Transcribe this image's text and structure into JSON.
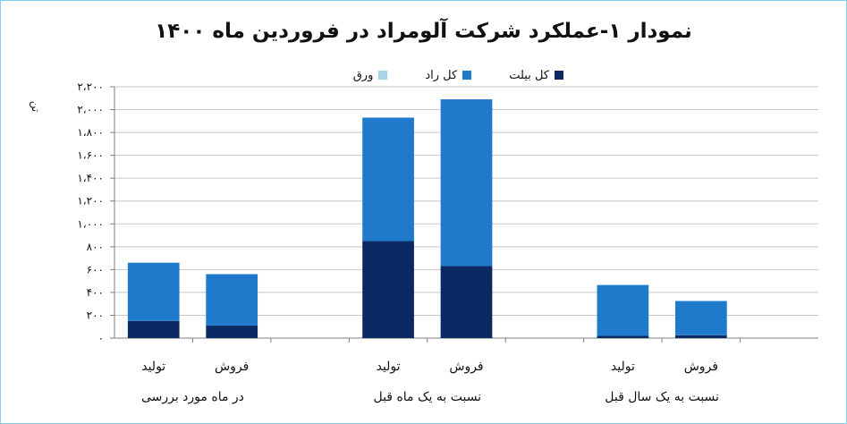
{
  "chart_data": {
    "type": "bar",
    "stacked": true,
    "title": "نمودار ۱-عملکرد شرکت آلومراد در فروردین ماه ۱۴۰۰",
    "ylabel": "تن",
    "ylim": [
      0,
      2200
    ],
    "y_ticks": [
      0,
      200,
      400,
      600,
      800,
      1000,
      1200,
      1400,
      1600,
      1800,
      2000,
      2200
    ],
    "y_tick_labels": [
      "۰",
      "۲۰۰",
      "۴۰۰",
      "۶۰۰",
      "۸۰۰",
      "۱،۰۰۰",
      "۱،۲۰۰",
      "۱،۴۰۰",
      "۱،۶۰۰",
      "۱،۸۰۰",
      "۲،۰۰۰",
      "۲،۲۰۰"
    ],
    "grid": true,
    "legend_position": "top",
    "groups": [
      "در ماه مورد بررسی",
      "نسبت به یک ماه قبل",
      "نسبت به یک سال قبل"
    ],
    "categories": [
      "تولید",
      "فروش",
      "تولید",
      "فروش",
      "تولید",
      "فروش"
    ],
    "series": [
      {
        "name": "کل بیلت",
        "color": "#0b2a63",
        "values": [
          150,
          110,
          850,
          630,
          20,
          25
        ]
      },
      {
        "name": "کل راد",
        "color": "#1f7acb",
        "values": [
          510,
          450,
          1080,
          1460,
          445,
          300
        ]
      },
      {
        "name": "ورق",
        "color": "#a9d3ea",
        "values": [
          0,
          0,
          0,
          0,
          0,
          0
        ]
      }
    ]
  }
}
